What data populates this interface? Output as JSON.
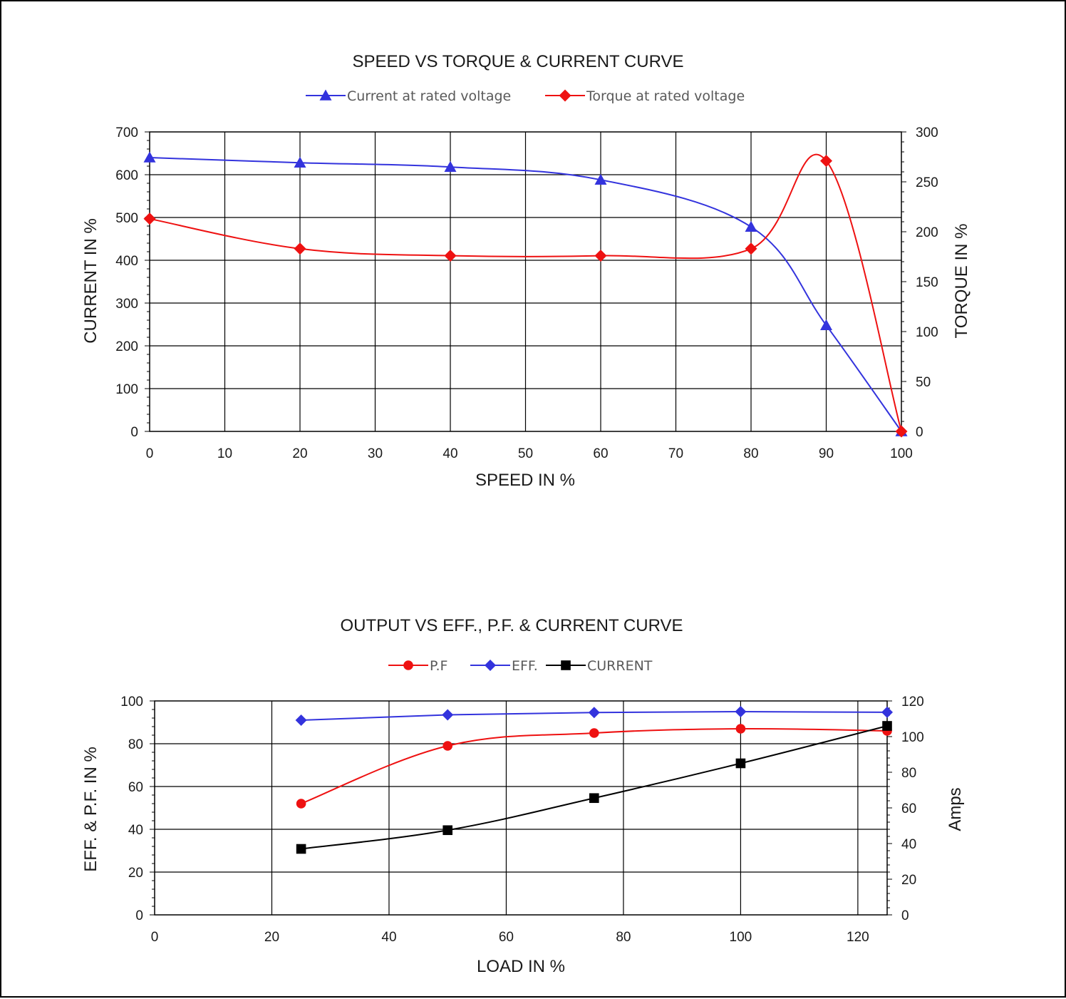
{
  "chart_data": [
    {
      "type": "line",
      "title": "SPEED VS TORQUE & CURRENT CURVE",
      "xlabel": "SPEED IN %",
      "ylabel": "CURRENT IN %",
      "y2label": "TORQUE IN %",
      "xlim": [
        0,
        100
      ],
      "ylim": [
        0,
        700
      ],
      "y2lim": [
        0,
        300
      ],
      "x_ticks": [
        0,
        10,
        20,
        30,
        40,
        50,
        60,
        70,
        80,
        90,
        100
      ],
      "y_ticks": [
        0,
        100,
        200,
        300,
        400,
        500,
        600,
        700
      ],
      "y2_ticks": [
        0,
        50,
        100,
        150,
        200,
        250,
        300
      ],
      "grid": true,
      "legend_position": "top",
      "series": [
        {
          "name": "Current at rated voltage",
          "axis": "left",
          "color": "#3333dd",
          "marker": "triangle",
          "x": [
            0,
            20,
            40,
            60,
            80,
            90,
            100
          ],
          "values": [
            640,
            628,
            618,
            588,
            478,
            248,
            0
          ]
        },
        {
          "name": "Torque at rated voltage",
          "axis": "right",
          "color": "#ee1111",
          "marker": "diamond",
          "x": [
            0,
            20,
            40,
            60,
            80,
            90,
            100
          ],
          "values": [
            213,
            183,
            176,
            176,
            183,
            271,
            0
          ]
        }
      ]
    },
    {
      "type": "line",
      "title": "OUTPUT VS EFF., P.F. & CURRENT CURVE",
      "xlabel": "LOAD IN %",
      "ylabel": "EFF. & P.F. IN %",
      "y2label": "Amps",
      "xlim": [
        0,
        125
      ],
      "ylim": [
        0,
        100
      ],
      "y2lim": [
        0,
        120
      ],
      "x_ticks": [
        0,
        20,
        40,
        60,
        80,
        100,
        120
      ],
      "y_ticks": [
        0,
        20,
        40,
        60,
        80,
        100
      ],
      "y2_ticks": [
        0,
        20,
        40,
        60,
        80,
        100,
        120
      ],
      "grid": true,
      "legend_position": "top",
      "series": [
        {
          "name": "P.F",
          "axis": "left",
          "color": "#ee1111",
          "marker": "circle",
          "x": [
            25,
            50,
            75,
            100,
            125
          ],
          "values": [
            52,
            79,
            85,
            87,
            86
          ]
        },
        {
          "name": "EFF.",
          "axis": "left",
          "color": "#3333dd",
          "marker": "diamond",
          "x": [
            25,
            50,
            75,
            100,
            125
          ],
          "values": [
            91,
            93.5,
            94.6,
            95,
            94.7
          ]
        },
        {
          "name": "CURRENT",
          "axis": "right",
          "color": "#000000",
          "marker": "square",
          "x": [
            25,
            50,
            75,
            100,
            125
          ],
          "values": [
            37,
            47.5,
            65.5,
            85,
            106
          ]
        }
      ]
    }
  ]
}
